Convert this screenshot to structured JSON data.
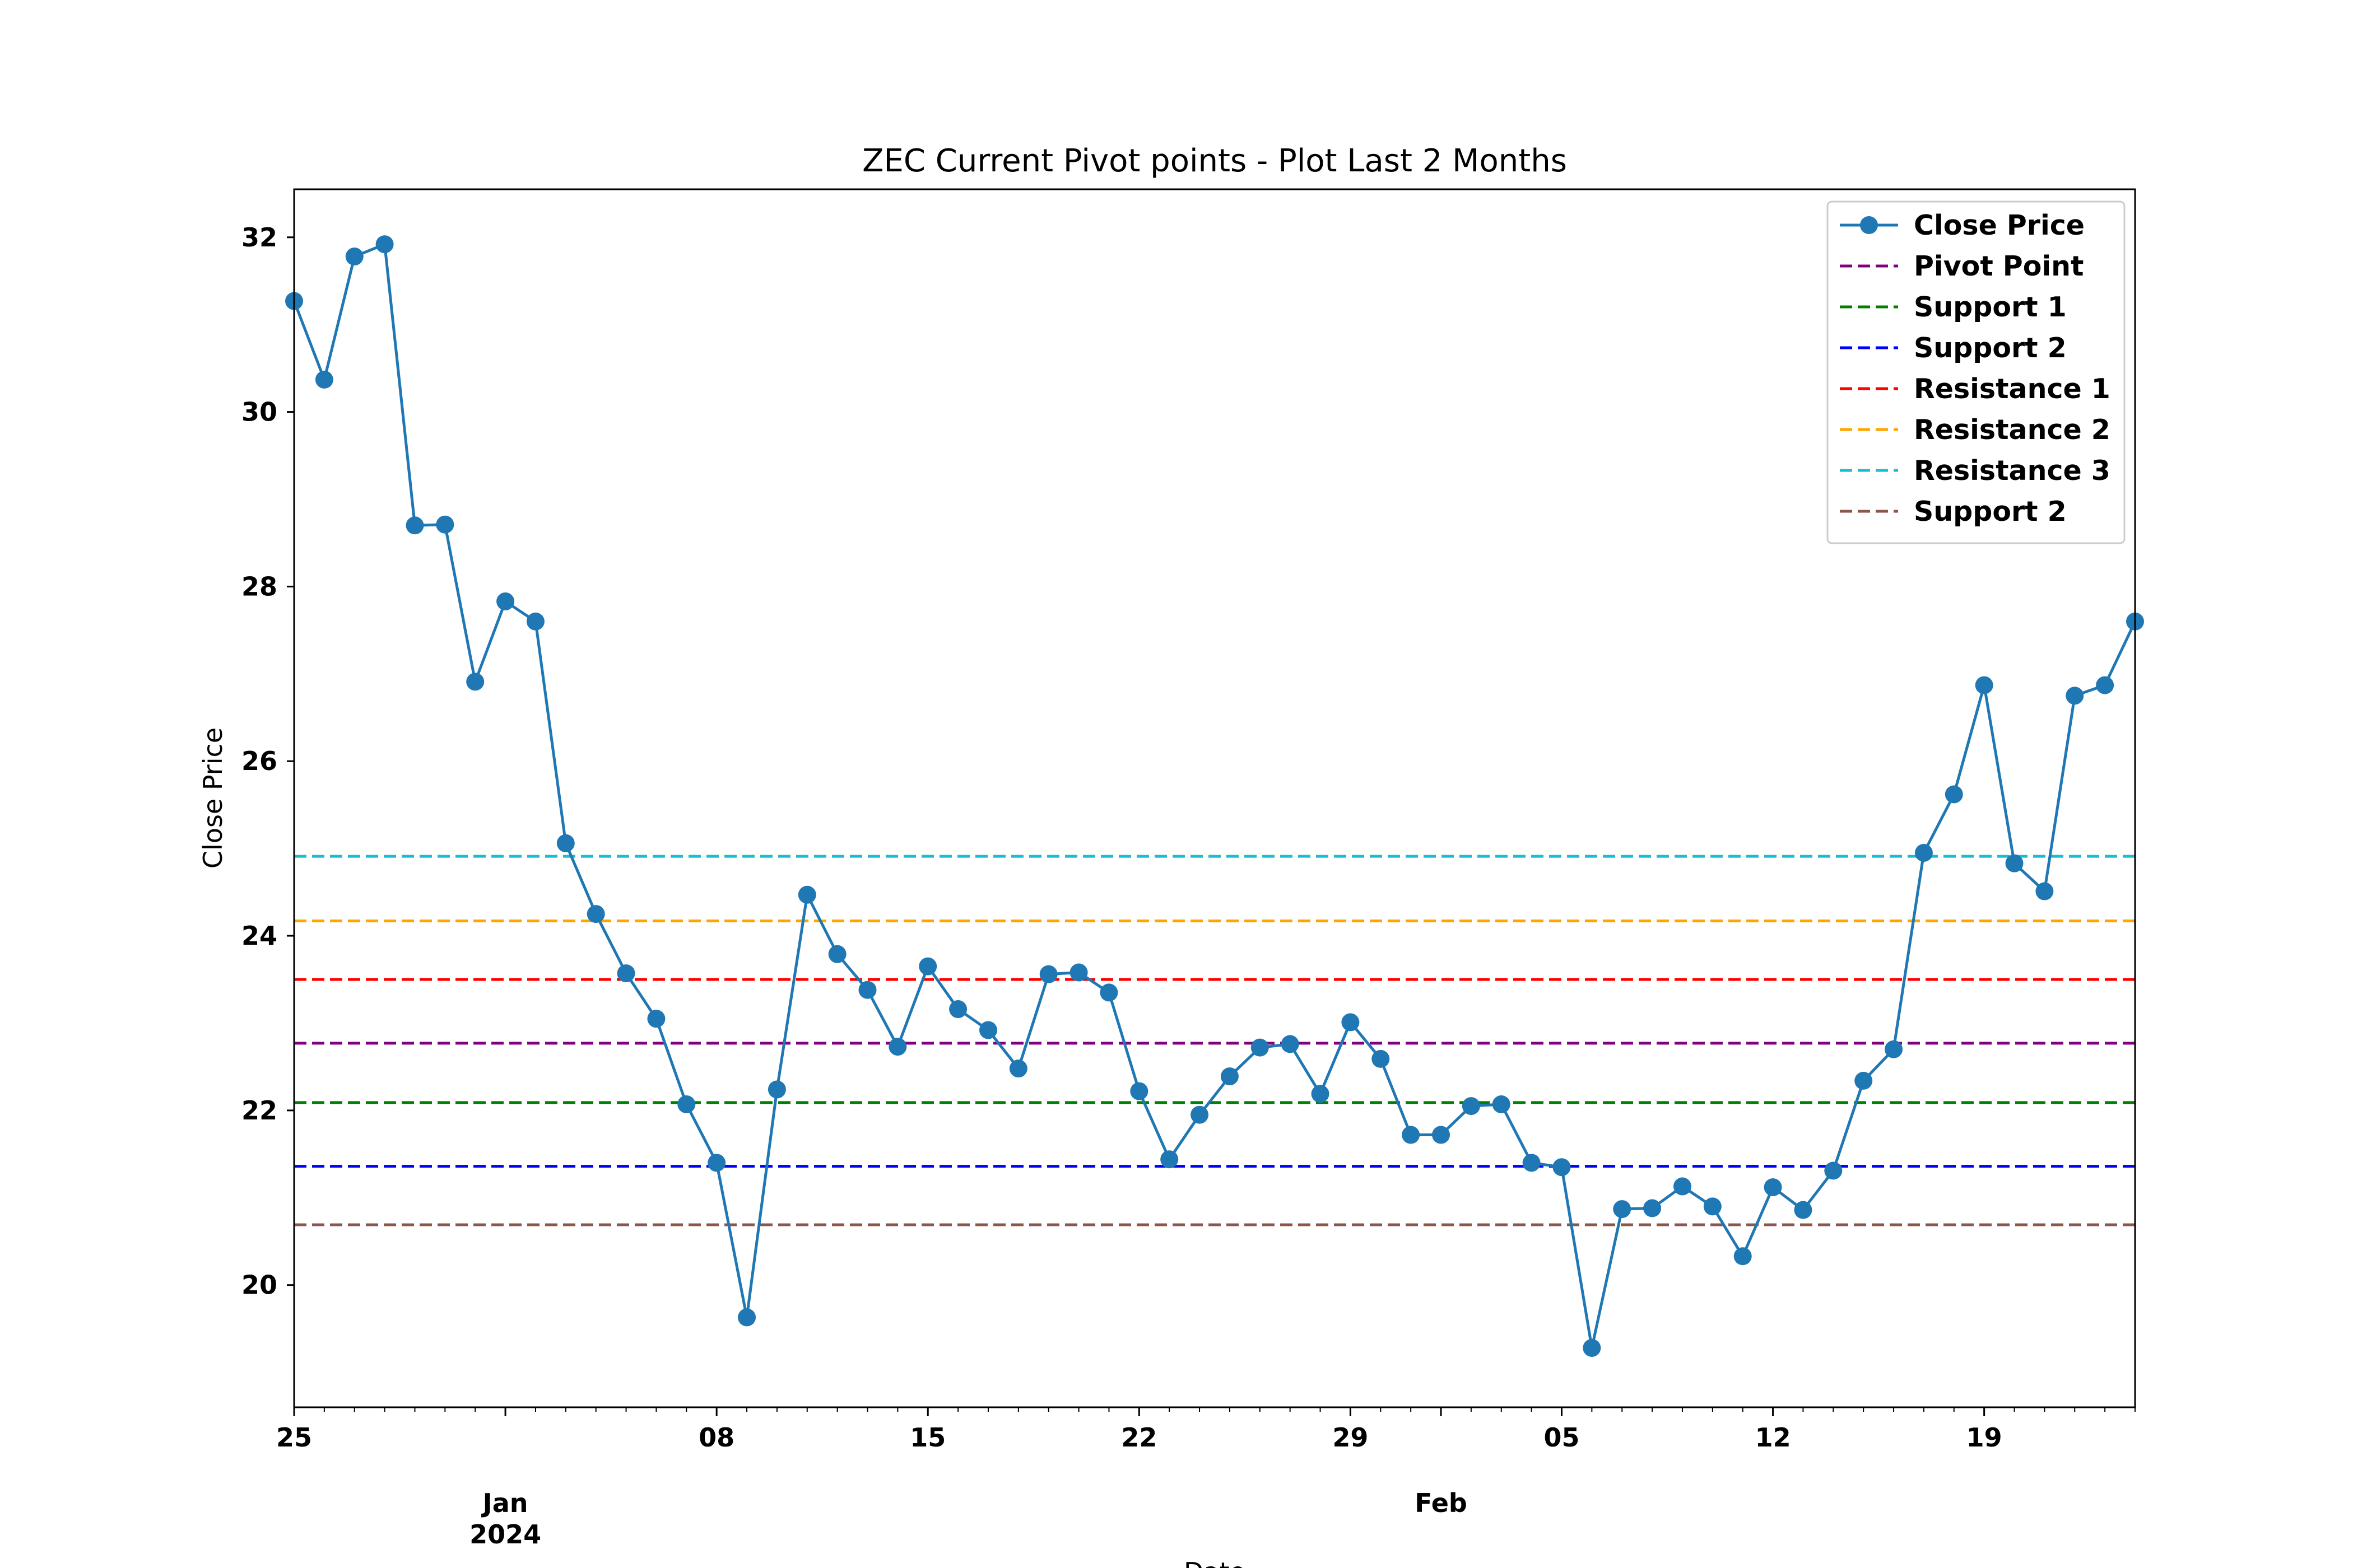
{
  "chart_data": {
    "type": "line",
    "title": "ZEC Current Pivot points - Plot Last 2 Months",
    "xlabel": "Date",
    "ylabel": "Close Price",
    "x_range": [
      "2023-12-25",
      "2024-02-24"
    ],
    "ylim": [
      18.6,
      32.55
    ],
    "y_ticks": [
      20,
      22,
      24,
      26,
      28,
      30,
      32
    ],
    "x_major_ticks": [
      {
        "date": "2023-12-25",
        "label": "25"
      },
      {
        "date": "2024-01-01",
        "label": "Jan\n2024"
      },
      {
        "date": "2024-01-08",
        "label": "08"
      },
      {
        "date": "2024-01-15",
        "label": "15"
      },
      {
        "date": "2024-01-22",
        "label": "22"
      },
      {
        "date": "2024-01-29",
        "label": "29"
      },
      {
        "date": "2024-02-01",
        "label": "Feb"
      },
      {
        "date": "2024-02-05",
        "label": "05"
      },
      {
        "date": "2024-02-12",
        "label": "12"
      },
      {
        "date": "2024-02-19",
        "label": "19"
      }
    ],
    "grid": false,
    "legend_position": "top-right",
    "series": [
      {
        "name": "Close Price",
        "style": "line-markers",
        "color": "#1f77b4",
        "x": [
          "2023-12-25",
          "2023-12-26",
          "2023-12-27",
          "2023-12-28",
          "2023-12-29",
          "2023-12-30",
          "2023-12-31",
          "2024-01-01",
          "2024-01-02",
          "2024-01-03",
          "2024-01-04",
          "2024-01-05",
          "2024-01-06",
          "2024-01-07",
          "2024-01-08",
          "2024-01-09",
          "2024-01-10",
          "2024-01-11",
          "2024-01-12",
          "2024-01-13",
          "2024-01-14",
          "2024-01-15",
          "2024-01-16",
          "2024-01-17",
          "2024-01-18",
          "2024-01-19",
          "2024-01-20",
          "2024-01-21",
          "2024-01-22",
          "2024-01-23",
          "2024-01-24",
          "2024-01-25",
          "2024-01-26",
          "2024-01-27",
          "2024-01-28",
          "2024-01-29",
          "2024-01-30",
          "2024-01-31",
          "2024-02-01",
          "2024-02-02",
          "2024-02-03",
          "2024-02-04",
          "2024-02-05",
          "2024-02-06",
          "2024-02-07",
          "2024-02-08",
          "2024-02-09",
          "2024-02-10",
          "2024-02-11",
          "2024-02-12",
          "2024-02-13",
          "2024-02-14",
          "2024-02-15",
          "2024-02-16",
          "2024-02-17",
          "2024-02-18",
          "2024-02-19",
          "2024-02-20",
          "2024-02-21",
          "2024-02-22",
          "2024-02-23",
          "2024-02-24"
        ],
        "values": [
          31.27,
          30.37,
          31.78,
          31.92,
          28.7,
          28.71,
          26.91,
          27.83,
          27.6,
          25.06,
          24.25,
          23.57,
          23.05,
          22.07,
          21.4,
          19.63,
          22.24,
          24.47,
          23.79,
          23.38,
          22.73,
          23.65,
          23.16,
          22.92,
          22.48,
          23.56,
          23.58,
          23.35,
          22.22,
          21.44,
          21.95,
          22.39,
          22.72,
          22.76,
          22.19,
          23.01,
          22.59,
          21.72,
          21.72,
          22.05,
          22.07,
          21.4,
          21.35,
          19.28,
          20.87,
          20.88,
          21.13,
          20.9,
          20.33,
          21.12,
          20.86,
          21.31,
          22.34,
          22.7,
          24.95,
          25.62,
          26.87,
          24.83,
          24.51,
          26.75,
          26.87,
          27.6
        ]
      },
      {
        "name": "Pivot Point",
        "style": "dashed",
        "color": "#800080",
        "value": 22.77
      },
      {
        "name": "Support 1",
        "style": "dashed",
        "color": "#008000",
        "value": 22.09
      },
      {
        "name": "Support 2",
        "style": "dashed",
        "color": "#0000ff",
        "value": 21.36
      },
      {
        "name": "Resistance 1",
        "style": "dashed",
        "color": "#ff0000",
        "value": 23.5
      },
      {
        "name": "Resistance 2",
        "style": "dashed",
        "color": "#ffa500",
        "value": 24.17
      },
      {
        "name": "Resistance 3",
        "style": "dashed",
        "color": "#17becf",
        "value": 24.91
      },
      {
        "name": "Support 2",
        "style": "dashed",
        "color": "#8c564b",
        "value": 20.69
      }
    ]
  }
}
